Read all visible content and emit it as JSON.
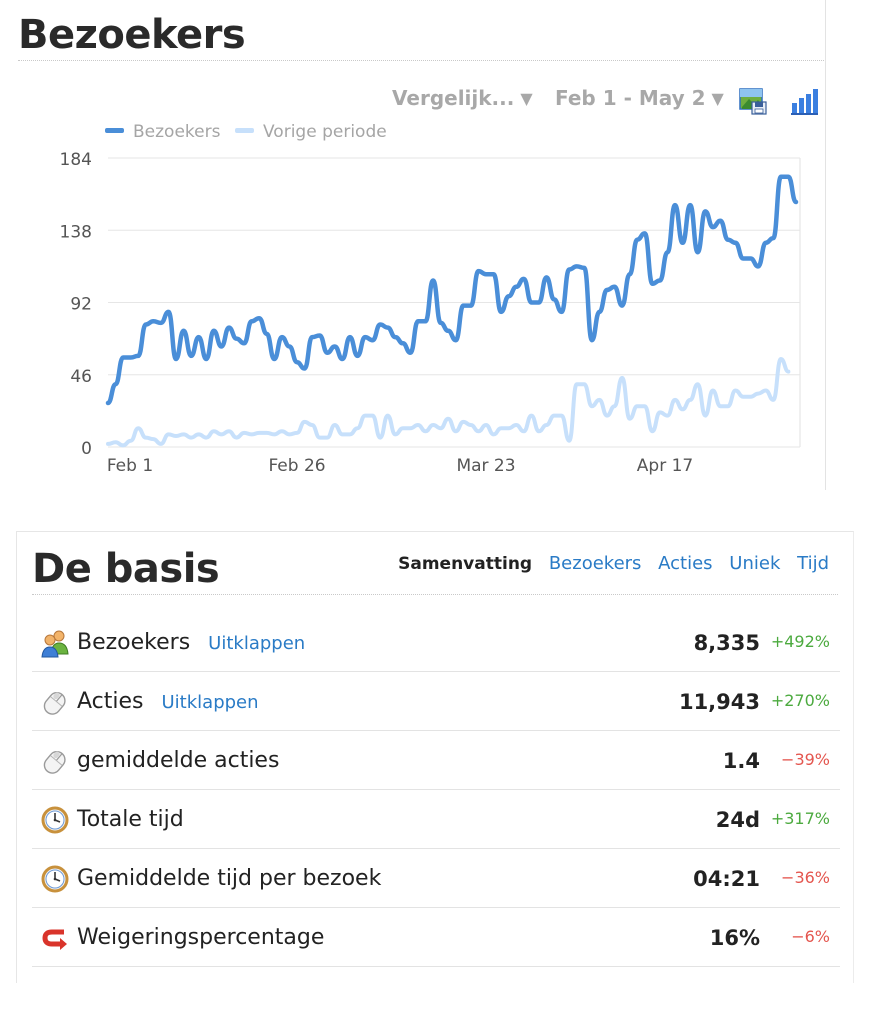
{
  "visitors_panel": {
    "title": "Bezoekers",
    "compare_dropdown": "Vergelijk...",
    "range_dropdown": "Feb 1 - May 2",
    "export_icon": "export-image-icon",
    "chart_type_icon": "bar-chart-icon",
    "legend": [
      {
        "label": "Bezoekers",
        "color": "#4a8ed8"
      },
      {
        "label": "Vorige periode",
        "color": "#c7e0fb"
      }
    ]
  },
  "chart_data": {
    "type": "line",
    "title": "",
    "xlabel": "",
    "ylabel": "",
    "x_ticks": [
      "Feb 1",
      "Feb 26",
      "Mar 23",
      "Apr 17"
    ],
    "y_ticks": [
      "0",
      "46",
      "92",
      "138",
      "184"
    ],
    "ylim": [
      0,
      184
    ],
    "grid": "horizontal",
    "legend_position": "top-left",
    "series": [
      {
        "name": "Bezoekers",
        "color": "#4a8ed8",
        "values": [
          28,
          40,
          57,
          57,
          58,
          78,
          80,
          79,
          86,
          56,
          74,
          58,
          70,
          56,
          74,
          64,
          76,
          69,
          66,
          80,
          82,
          72,
          56,
          70,
          64,
          54,
          50,
          70,
          71,
          60,
          64,
          56,
          70,
          58,
          70,
          68,
          78,
          76,
          70,
          66,
          60,
          80,
          80,
          106,
          79,
          74,
          68,
          90,
          90,
          112,
          110,
          110,
          86,
          96,
          102,
          107,
          92,
          92,
          108,
          94,
          86,
          113,
          115,
          114,
          68,
          86,
          100,
          102,
          90,
          110,
          132,
          136,
          104,
          106,
          124,
          154,
          130,
          154,
          124,
          150,
          140,
          144,
          132,
          130,
          120,
          120,
          115,
          130,
          133,
          172,
          172,
          156
        ],
        "x_start": "Feb 1"
      },
      {
        "name": "Vorige periode",
        "color": "#c7e0fb",
        "values": [
          2,
          3,
          1,
          4,
          12,
          6,
          5,
          2,
          8,
          7,
          8,
          6,
          8,
          6,
          10,
          8,
          10,
          6,
          9,
          8,
          9,
          9,
          8,
          10,
          8,
          9,
          16,
          14,
          6,
          6,
          14,
          8,
          8,
          12,
          20,
          20,
          6,
          20,
          8,
          12,
          12,
          14,
          10,
          14,
          12,
          18,
          10,
          16,
          14,
          10,
          14,
          8,
          12,
          12,
          14,
          10,
          20,
          10,
          14,
          20,
          20,
          4,
          40,
          40,
          26,
          30,
          20,
          26,
          44,
          18,
          26,
          26,
          10,
          22,
          20,
          30,
          24,
          30,
          40,
          20,
          36,
          26,
          26,
          36,
          32,
          32,
          34,
          36,
          30,
          56,
          48
        ]
      }
    ]
  },
  "basis_panel": {
    "title": "De basis",
    "tabs": [
      {
        "label": "Samenvatting",
        "active": true
      },
      {
        "label": "Bezoekers",
        "active": false
      },
      {
        "label": "Acties",
        "active": false
      },
      {
        "label": "Uniek",
        "active": false
      },
      {
        "label": "Tijd",
        "active": false
      }
    ],
    "rows": [
      {
        "icon": "visitors-icon",
        "label": "Bezoekers",
        "expand": "Uitklappen",
        "value": "8,335",
        "delta": "+492%",
        "trend": "up"
      },
      {
        "icon": "mouse-icon",
        "label": "Acties",
        "expand": "Uitklappen",
        "value": "11,943",
        "delta": "+270%",
        "trend": "up"
      },
      {
        "icon": "mouse-icon",
        "label": "gemiddelde acties",
        "expand": "",
        "value": "1.4",
        "delta": "−39%",
        "trend": "down"
      },
      {
        "icon": "clock-icon",
        "label": "Totale tijd",
        "expand": "",
        "value": "24d",
        "delta": "+317%",
        "trend": "up"
      },
      {
        "icon": "clock-icon",
        "label": "Gemiddelde tijd per bezoek",
        "expand": "",
        "value": "04:21",
        "delta": "−36%",
        "trend": "down"
      },
      {
        "icon": "bounce-icon",
        "label": "Weigeringspercentage",
        "expand": "",
        "value": "16%",
        "delta": "−6%",
        "trend": "down"
      }
    ]
  }
}
